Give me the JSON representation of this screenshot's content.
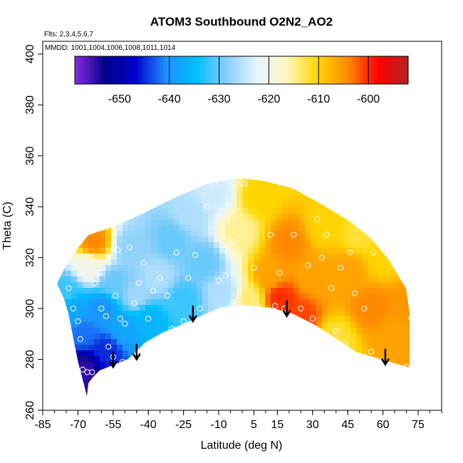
{
  "chart_data": {
    "type": "heatmap",
    "title": "ATOM3 Southbound O2N2_AO2",
    "flights_note": "Flts: 2,3,4,5,6,7",
    "dates_note": "MMDD: 1001,1004,1006,1008,1011,1014",
    "xlabel": "Latitude (deg N)",
    "ylabel": "Theta (C)",
    "xlim": [
      -85,
      85
    ],
    "ylim": [
      260,
      405
    ],
    "x_ticks": [
      -85,
      -70,
      -55,
      -40,
      -25,
      -10,
      5,
      15,
      30,
      45,
      60,
      75
    ],
    "x_ticks_labels": [
      "-85",
      "-70",
      "-55",
      "-40",
      "-25",
      "-10",
      "5",
      "15",
      "30",
      "45",
      "60",
      "75"
    ],
    "y_ticks": [
      260,
      280,
      300,
      320,
      340,
      360,
      380,
      400
    ],
    "y_ticks_labels": [
      "260",
      "280",
      "300",
      "320",
      "340",
      "360",
      "380",
      "400"
    ],
    "colorbar": {
      "min": -659,
      "max": -592,
      "ticks": [
        -650,
        -640,
        -630,
        -620,
        -610,
        -600
      ],
      "ticks_labels": [
        "-650",
        "-640",
        "-630",
        "-620",
        "-610",
        "-600"
      ],
      "colors": [
        "#8a2be2",
        "#00008b",
        "#0000cd",
        "#1e90ff",
        "#00bfff",
        "#87cefa",
        "#e6f5ff",
        "#fff8c0",
        "#ffd700",
        "#ff8c00",
        "#ff0000",
        "#b22222"
      ]
    },
    "tropopause_arrows_lat": [
      -55,
      -45,
      -21,
      19,
      61
    ],
    "tropopause_arrows_theta": [
      277,
      280,
      295,
      297,
      278
    ],
    "field_points": [
      {
        "lat": -75,
        "theta": 306,
        "value": -632
      },
      {
        "lat": -72,
        "theta": 300,
        "value": -638
      },
      {
        "lat": -68,
        "theta": 290,
        "value": -642
      },
      {
        "lat": -67,
        "theta": 276,
        "value": -655
      },
      {
        "lat": -65,
        "theta": 316,
        "value": -620
      },
      {
        "lat": -63,
        "theta": 326,
        "value": -604
      },
      {
        "lat": -60,
        "theta": 300,
        "value": -640
      },
      {
        "lat": -58,
        "theta": 283,
        "value": -645
      },
      {
        "lat": -55,
        "theta": 310,
        "value": -630
      },
      {
        "lat": -50,
        "theta": 292,
        "value": -638
      },
      {
        "lat": -48,
        "theta": 324,
        "value": -628
      },
      {
        "lat": -45,
        "theta": 305,
        "value": -627
      },
      {
        "lat": -40,
        "theta": 296,
        "value": -636
      },
      {
        "lat": -36,
        "theta": 312,
        "value": -626
      },
      {
        "lat": -30,
        "theta": 327,
        "value": -630
      },
      {
        "lat": -25,
        "theta": 303,
        "value": -632
      },
      {
        "lat": -22,
        "theta": 337,
        "value": -626
      },
      {
        "lat": -16,
        "theta": 318,
        "value": -630
      },
      {
        "lat": -12,
        "theta": 345,
        "value": -624
      },
      {
        "lat": -8,
        "theta": 306,
        "value": -626
      },
      {
        "lat": -2,
        "theta": 330,
        "value": -615
      },
      {
        "lat": 3,
        "theta": 303,
        "value": -614
      },
      {
        "lat": 7,
        "theta": 344,
        "value": -610
      },
      {
        "lat": 12,
        "theta": 313,
        "value": -606
      },
      {
        "lat": 16,
        "theta": 304,
        "value": -600
      },
      {
        "lat": 20,
        "theta": 326,
        "value": -604
      },
      {
        "lat": 25,
        "theta": 296,
        "value": -601
      },
      {
        "lat": 30,
        "theta": 313,
        "value": -606
      },
      {
        "lat": 35,
        "theta": 332,
        "value": -610
      },
      {
        "lat": 40,
        "theta": 288,
        "value": -612
      },
      {
        "lat": 45,
        "theta": 315,
        "value": -606
      },
      {
        "lat": 50,
        "theta": 329,
        "value": -612
      },
      {
        "lat": 55,
        "theta": 300,
        "value": -604
      },
      {
        "lat": 60,
        "theta": 320,
        "value": -610
      },
      {
        "lat": 65,
        "theta": 290,
        "value": -606
      },
      {
        "lat": 70,
        "theta": 300,
        "value": -605
      }
    ],
    "sample_points": [
      {
        "lat": -80,
        "theta": 310
      },
      {
        "lat": -74,
        "theta": 308
      },
      {
        "lat": -72,
        "theta": 300
      },
      {
        "lat": -70,
        "theta": 295
      },
      {
        "lat": -69,
        "theta": 288
      },
      {
        "lat": -68,
        "theta": 276
      },
      {
        "lat": -66,
        "theta": 275
      },
      {
        "lat": -64,
        "theta": 275
      },
      {
        "lat": -63,
        "theta": 310
      },
      {
        "lat": -61,
        "theta": 314
      },
      {
        "lat": -60,
        "theta": 300
      },
      {
        "lat": -58,
        "theta": 297
      },
      {
        "lat": -57,
        "theta": 285
      },
      {
        "lat": -55,
        "theta": 281
      },
      {
        "lat": -54,
        "theta": 305
      },
      {
        "lat": -53,
        "theta": 323
      },
      {
        "lat": -52,
        "theta": 296
      },
      {
        "lat": -51,
        "theta": 279
      },
      {
        "lat": -50,
        "theta": 294
      },
      {
        "lat": -48,
        "theta": 324
      },
      {
        "lat": -46,
        "theta": 302
      },
      {
        "lat": -44,
        "theta": 310
      },
      {
        "lat": -42,
        "theta": 318
      },
      {
        "lat": -40,
        "theta": 296
      },
      {
        "lat": -38,
        "theta": 307
      },
      {
        "lat": -35,
        "theta": 312
      },
      {
        "lat": -32,
        "theta": 305
      },
      {
        "lat": -30,
        "theta": 292
      },
      {
        "lat": -28,
        "theta": 322
      },
      {
        "lat": -25,
        "theta": 295
      },
      {
        "lat": -23,
        "theta": 312
      },
      {
        "lat": -20,
        "theta": 321
      },
      {
        "lat": -18,
        "theta": 300
      },
      {
        "lat": -15,
        "theta": 340
      },
      {
        "lat": -12,
        "theta": 349
      },
      {
        "lat": -10,
        "theta": 311
      },
      {
        "lat": -7,
        "theta": 313
      },
      {
        "lat": -4,
        "theta": 326
      },
      {
        "lat": -2,
        "theta": 302
      },
      {
        "lat": 1,
        "theta": 349
      },
      {
        "lat": 5,
        "theta": 316
      },
      {
        "lat": 7,
        "theta": 301
      },
      {
        "lat": 12,
        "theta": 329
      },
      {
        "lat": 14,
        "theta": 301
      },
      {
        "lat": 16,
        "theta": 314
      },
      {
        "lat": 18,
        "theta": 300
      },
      {
        "lat": 22,
        "theta": 329
      },
      {
        "lat": 25,
        "theta": 300
      },
      {
        "lat": 28,
        "theta": 317
      },
      {
        "lat": 30,
        "theta": 296
      },
      {
        "lat": 32,
        "theta": 335
      },
      {
        "lat": 34,
        "theta": 320
      },
      {
        "lat": 36,
        "theta": 329
      },
      {
        "lat": 38,
        "theta": 308
      },
      {
        "lat": 40,
        "theta": 291
      },
      {
        "lat": 42,
        "theta": 316
      },
      {
        "lat": 44,
        "theta": 286
      },
      {
        "lat": 46,
        "theta": 322
      },
      {
        "lat": 48,
        "theta": 306
      },
      {
        "lat": 52,
        "theta": 300
      },
      {
        "lat": 55,
        "theta": 283
      },
      {
        "lat": 56,
        "theta": 322
      },
      {
        "lat": 70,
        "theta": 277
      },
      {
        "lat": 72,
        "theta": 296
      }
    ]
  }
}
